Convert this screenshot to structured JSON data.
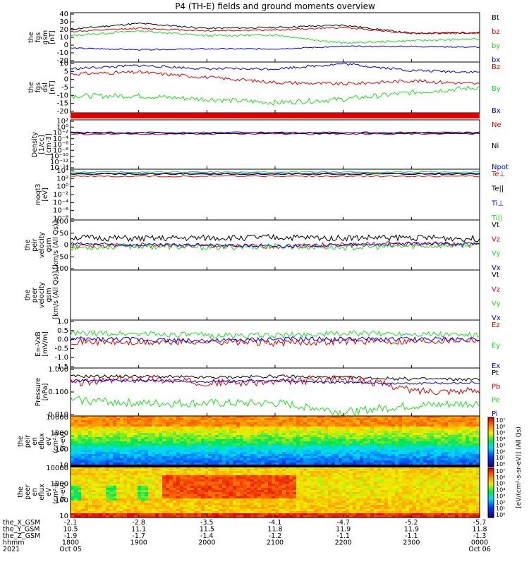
{
  "title": "P4 (TH-E) fields and ground moments overview",
  "colors": {
    "black": "#000000",
    "red": "#e00000",
    "green": "#22dd22",
    "blue": "#0000dd"
  },
  "panels": [
    {
      "id": "fgs_gsm",
      "ylabel": [
        "the",
        "fgs",
        "gsm",
        "[nT]"
      ],
      "scale": "linear",
      "yticks": [
        "40",
        "30",
        "20",
        "10",
        "0",
        "-10",
        "-20"
      ],
      "legend": [
        {
          "label": "Bt",
          "color": "black"
        },
        {
          "label": "bz",
          "color": "red"
        },
        {
          "label": "by",
          "color": "green"
        },
        {
          "label": "bx",
          "color": "blue"
        }
      ]
    },
    {
      "id": "fgs_dsl",
      "ylabel": [
        "the",
        "fgs",
        "dsl",
        "[nT]"
      ],
      "scale": "linear",
      "yticks": [
        "10",
        "5",
        "0",
        "-5",
        "-10",
        "-15",
        "-20"
      ],
      "legend": [
        {
          "label": "Bz",
          "color": "red"
        },
        {
          "label": "By",
          "color": "green"
        },
        {
          "label": "Bx",
          "color": "blue"
        }
      ]
    },
    {
      "id": "density",
      "ylabel": [
        "Density",
        "[1/cc]",
        "[cm-3]"
      ],
      "scale": "log",
      "yticks": [
        "10^2",
        "10^0",
        "10^-2",
        "10^-4",
        "10^-6",
        "10^-8",
        "10^-10",
        "10^-12",
        "10^-14"
      ],
      "legend": [
        {
          "label": "Ne",
          "color": "red"
        },
        {
          "label": "Ni",
          "color": "black"
        },
        {
          "label": "Npot",
          "color": "blue"
        }
      ]
    },
    {
      "id": "temp",
      "ylabel": [
        "moqt3",
        "[eV]"
      ],
      "scale": "log",
      "yticks": [
        "10^4",
        "10^2",
        "10^0",
        "10^-2",
        "10^-4",
        "10^-6",
        "10^-8"
      ],
      "legend": [
        {
          "label": "Te⊥",
          "color": "red"
        },
        {
          "label": "Te||",
          "color": "black"
        },
        {
          "label": "Ti⊥",
          "color": "blue"
        },
        {
          "label": "Ti||",
          "color": "green"
        }
      ]
    },
    {
      "id": "peir_vel",
      "ylabel": [
        "the",
        "peir",
        "velocity",
        "gsm",
        "[km/s (All Qs)]"
      ],
      "scale": "linear",
      "yticks": [
        "100",
        "50",
        "0",
        "-50",
        "-100"
      ],
      "legend": [
        {
          "label": "Vt",
          "color": "black"
        },
        {
          "label": "Vz",
          "color": "red"
        },
        {
          "label": "Vy",
          "color": "green"
        },
        {
          "label": "Vx",
          "color": "blue"
        }
      ]
    },
    {
      "id": "peer_vel",
      "ylabel": [
        "the",
        "peer",
        "velocity",
        "gsm",
        "[km/s (All Qs)]"
      ],
      "scale": "linear",
      "yticks": [],
      "legend": [
        {
          "label": "Vt",
          "color": "black"
        },
        {
          "label": "Vz",
          "color": "red"
        },
        {
          "label": "Vy",
          "color": "green"
        },
        {
          "label": "Vx",
          "color": "blue"
        }
      ]
    },
    {
      "id": "efield",
      "ylabel": [
        "E=-VxB",
        "[mV/m]"
      ],
      "scale": "linear",
      "yticks": [
        "1.0",
        "0.5",
        "0.0",
        "-0.5",
        "-1.0",
        "-1.5"
      ],
      "legend": [
        {
          "label": "Ez",
          "color": "red"
        },
        {
          "label": "Ey",
          "color": "green"
        },
        {
          "label": "Ex",
          "color": "blue"
        }
      ]
    },
    {
      "id": "pressure",
      "ylabel": [
        "Pressure",
        "[nPa]"
      ],
      "scale": "log",
      "yticks": [
        "1.000",
        "0.100",
        "0.010"
      ],
      "legend": [
        {
          "label": "Pt",
          "color": "black"
        },
        {
          "label": "Pb",
          "color": "red"
        },
        {
          "label": "Pe",
          "color": "green"
        },
        {
          "label": "Pi",
          "color": "blue"
        }
      ]
    },
    {
      "id": "peir_eflux",
      "ylabel": [
        "the",
        "peir",
        "en",
        "eflux",
        "eV",
        "(cm^2-s-",
        "sr-eV)"
      ],
      "scale": "log",
      "yticks": [
        "10000",
        "1000",
        "100",
        "10"
      ],
      "legend": []
    },
    {
      "id": "peer_eflux",
      "ylabel": [
        "the",
        "peer",
        "en",
        "eflux",
        "eV",
        "(cm^2-s-",
        "sr-eV)"
      ],
      "scale": "log",
      "yticks": [
        "10000",
        "1000",
        "100",
        "10"
      ],
      "legend": []
    }
  ],
  "colorbar": {
    "ticks": [
      "10^7",
      "10^6",
      "10^5",
      "10^4",
      "10^3",
      "10^2",
      "10^1",
      "10^0"
    ],
    "label": "[eV/(cm^2-s-sr-eV)] (All Qs)"
  },
  "xaxis": {
    "rows": [
      {
        "name": "the_X_GSM",
        "values": [
          "-2.1",
          "-2.8",
          "-3.5",
          "-4.1",
          "-4.7",
          "-5.2",
          "-5.7"
        ]
      },
      {
        "name": "the_Y_GSM",
        "values": [
          "10.5",
          "11.1",
          "11.5",
          "11.8",
          "11.9",
          "11.9",
          "11.8"
        ]
      },
      {
        "name": "the_Z_GSM",
        "values": [
          "-1.9",
          "-1.7",
          "-1.4",
          "-1.2",
          "-1.1",
          "-1.1",
          "-1.3"
        ]
      },
      {
        "name": "hhmm",
        "values": [
          "1800",
          "1900",
          "2000",
          "2100",
          "2200",
          "2300",
          "0000"
        ]
      },
      {
        "name": "2021",
        "values": [
          "Oct 05",
          "",
          "",
          "",
          "",
          "",
          "Oct 06"
        ]
      }
    ]
  },
  "chart_data": [
    {
      "type": "line",
      "title": "P4 (TH-E) fields and ground moments overview",
      "ylabel": "the fgs gsm [nT]",
      "ylim": [
        -20,
        40
      ],
      "x": [
        "1800",
        "1900",
        "2000",
        "2100",
        "2200",
        "2300",
        "0000"
      ],
      "series": [
        {
          "name": "Bt",
          "values": [
            20,
            27,
            21,
            22,
            25,
            15,
            16
          ]
        },
        {
          "name": "bz",
          "values": [
            17,
            21,
            18,
            19,
            22,
            15,
            15
          ]
        },
        {
          "name": "by",
          "values": [
            12,
            18,
            12,
            13,
            3,
            6,
            8
          ]
        },
        {
          "name": "bx",
          "values": [
            -3,
            -5,
            -4,
            -4,
            -1,
            -1,
            -2
          ]
        }
      ]
    },
    {
      "type": "line",
      "ylabel": "the fgs dsl [nT]",
      "ylim": [
        -20,
        10
      ],
      "x": [
        "1800",
        "1900",
        "2000",
        "2100",
        "2200",
        "2300",
        "0000"
      ],
      "series": [
        {
          "name": "Bz",
          "values": [
            3,
            4,
            1,
            -2,
            -3,
            -1,
            -3
          ]
        },
        {
          "name": "By",
          "values": [
            -10,
            -10,
            -12,
            -14,
            -12,
            -8,
            -5
          ]
        },
        {
          "name": "Bx",
          "values": [
            6,
            8,
            6,
            6,
            9,
            5,
            4
          ]
        }
      ]
    },
    {
      "type": "line",
      "ylabel": "the peir velocity gsm [km/s (All Qs)]",
      "ylim": [
        -100,
        100
      ],
      "x": [
        "1800",
        "1900",
        "2000",
        "2100",
        "2200",
        "2300",
        "0000"
      ],
      "series": [
        {
          "name": "Vt",
          "values": [
            30,
            25,
            28,
            30,
            28,
            30,
            25
          ]
        },
        {
          "name": "Vz",
          "values": [
            -5,
            0,
            -5,
            -5,
            0,
            5,
            0
          ]
        },
        {
          "name": "Vy",
          "values": [
            -10,
            -5,
            -10,
            -5,
            -10,
            -5,
            0
          ]
        },
        {
          "name": "Vx",
          "values": [
            5,
            0,
            0,
            -5,
            0,
            5,
            5
          ]
        }
      ]
    },
    {
      "type": "line",
      "ylabel": "E=-VxB [mV/m]",
      "ylim": [
        -1.5,
        1.0
      ],
      "x": [
        "1800",
        "1900",
        "2000",
        "2100",
        "2200",
        "2300",
        "0000"
      ],
      "series": [
        {
          "name": "Ez",
          "values": [
            -0.1,
            -0.2,
            -0.1,
            -0.2,
            -0.1,
            -0.1,
            0.0
          ]
        },
        {
          "name": "Ey",
          "values": [
            0.3,
            0.3,
            0.2,
            0.2,
            0.3,
            0.3,
            0.2
          ]
        },
        {
          "name": "Ex",
          "values": [
            0.0,
            0.0,
            -0.1,
            0.0,
            0.0,
            0.0,
            0.0
          ]
        }
      ]
    },
    {
      "type": "line",
      "ylabel": "Pressure [nPa]",
      "ylim": [
        0.005,
        1.0
      ],
      "x": [
        "1800",
        "1900",
        "2000",
        "2100",
        "2200",
        "2300",
        "0000"
      ],
      "series": [
        {
          "name": "Pt",
          "values": [
            0.4,
            0.4,
            0.35,
            0.4,
            0.35,
            0.3,
            0.28
          ]
        },
        {
          "name": "Pb",
          "values": [
            0.18,
            0.3,
            0.2,
            0.2,
            0.3,
            0.08,
            0.08
          ]
        },
        {
          "name": "Pe",
          "values": [
            0.03,
            0.02,
            0.02,
            0.02,
            0.007,
            0.015,
            0.02
          ]
        },
        {
          "name": "Pi",
          "values": [
            0.25,
            0.25,
            0.22,
            0.25,
            0.2,
            0.18,
            0.2
          ]
        }
      ]
    }
  ]
}
